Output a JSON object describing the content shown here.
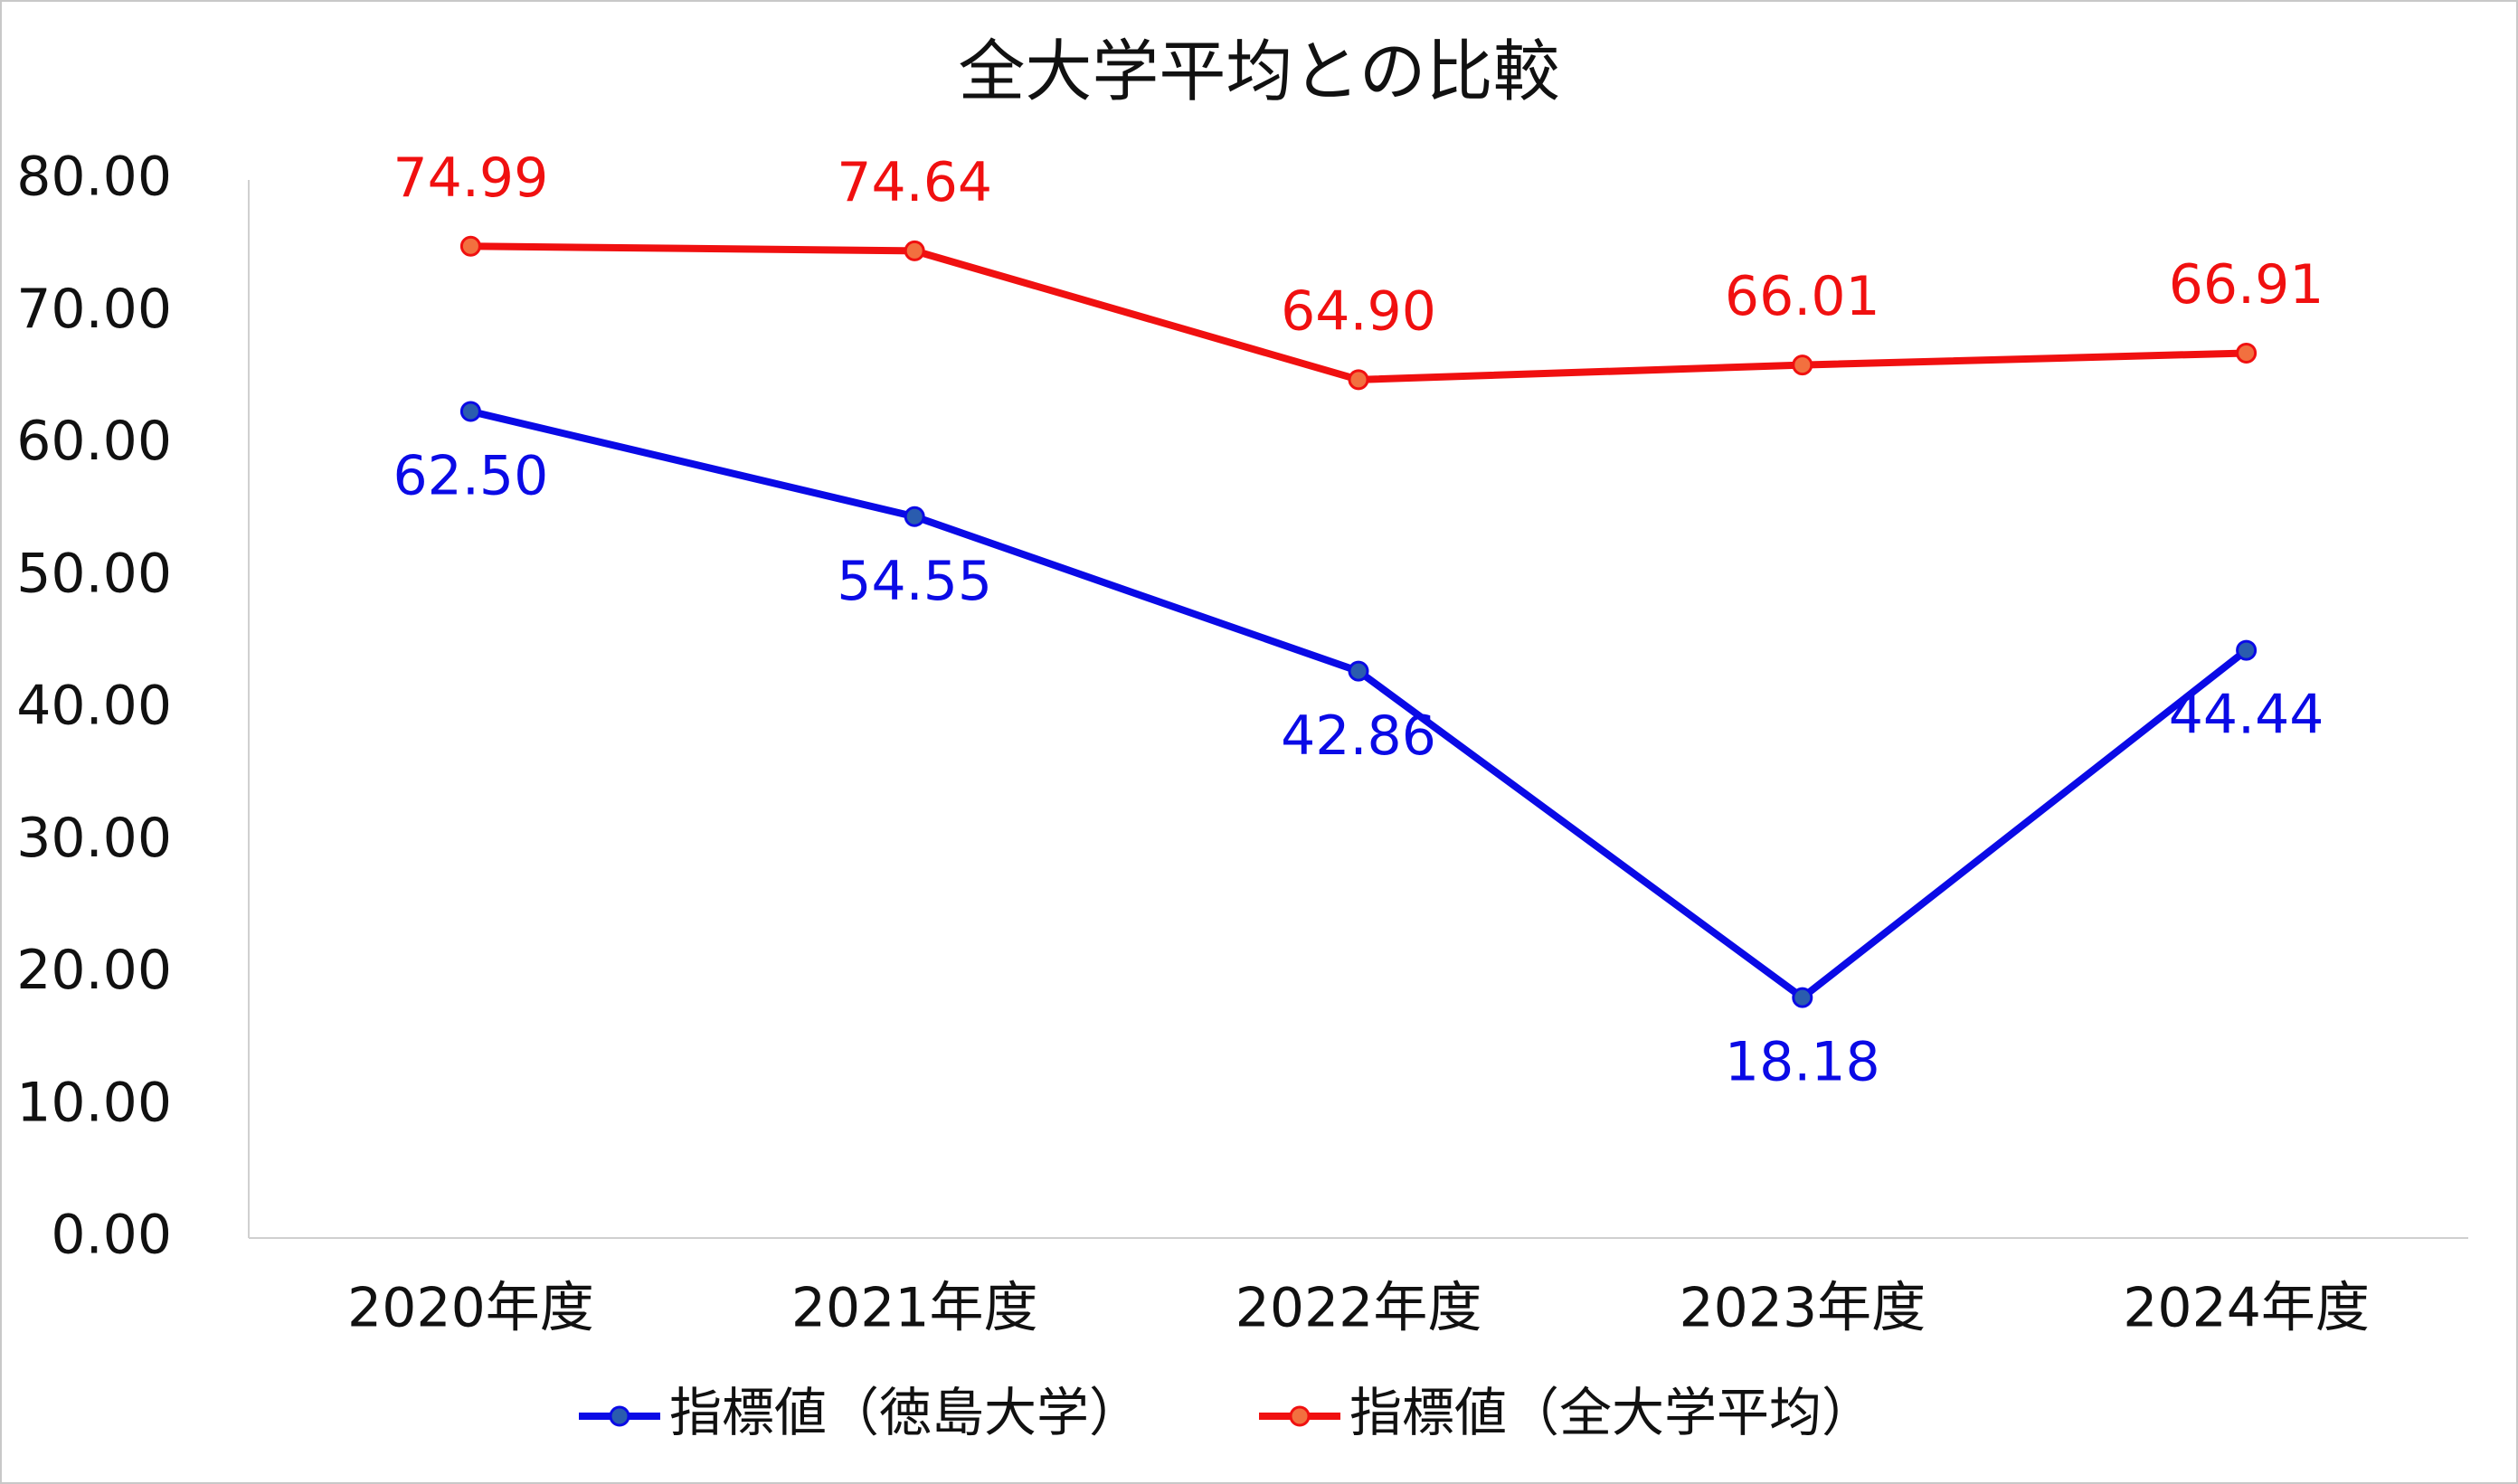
{
  "chart_data": {
    "type": "line",
    "title": "全大学平均との比較",
    "categories": [
      "2020年度",
      "2021年度",
      "2022年度",
      "2023年度",
      "2024年度"
    ],
    "series": [
      {
        "name": "指標値（徳島大学）",
        "color": "#0a0ae6",
        "marker_color": "#2a5cae",
        "values": [
          62.5,
          54.55,
          42.86,
          18.18,
          44.44
        ],
        "value_labels": [
          "62.50",
          "54.55",
          "42.86",
          "18.18",
          "44.44"
        ]
      },
      {
        "name": "指標値（全大学平均）",
        "color": "#f01010",
        "marker_color": "#f2703f",
        "values": [
          74.99,
          74.64,
          64.9,
          66.01,
          66.91
        ],
        "value_labels": [
          "74.99",
          "74.64",
          "64.90",
          "66.01",
          "66.91"
        ]
      }
    ],
    "ylim": [
      0,
      80
    ],
    "yticks": [
      {
        "value": 0,
        "label": "0.00"
      },
      {
        "value": 10,
        "label": "10.00"
      },
      {
        "value": 20,
        "label": "20.00"
      },
      {
        "value": 30,
        "label": "30.00"
      },
      {
        "value": 40,
        "label": "40.00"
      },
      {
        "value": 50,
        "label": "50.00"
      },
      {
        "value": 60,
        "label": "60.00"
      },
      {
        "value": 70,
        "label": "70.00"
      },
      {
        "value": 80,
        "label": "80.00"
      }
    ],
    "grid": false,
    "legend": "bottom"
  }
}
